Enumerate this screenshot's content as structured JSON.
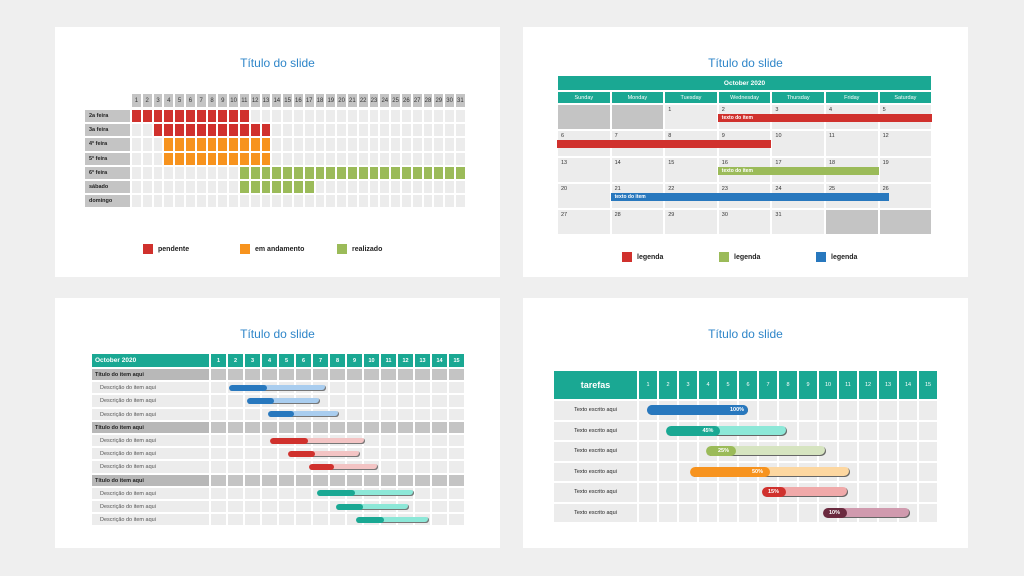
{
  "colors": {
    "teal": "#1aa893",
    "blue": "#2878be",
    "red": "#d0312d",
    "orange": "#f7931e",
    "green": "#9bbb59",
    "maroon": "#6b2a3f",
    "gray": "#c4c4c4"
  },
  "slide1": {
    "title": "Título do slide",
    "rows": [
      {
        "label": "2a feira",
        "start": 1,
        "end": 11,
        "status": "pendente"
      },
      {
        "label": "3a feira",
        "start": 3,
        "end": 13,
        "status": "pendente"
      },
      {
        "label": "4ª feira",
        "start": 4,
        "end": 13,
        "status": "em andamento"
      },
      {
        "label": "5ª feira",
        "start": 4,
        "end": 13,
        "status": "em andamento"
      },
      {
        "label": "6ª feira",
        "start": 11,
        "end": 31,
        "status": "realizado"
      },
      {
        "label": "sábado",
        "start": 11,
        "end": 17,
        "status": "realizado"
      },
      {
        "label": "domingo",
        "start": null,
        "end": null,
        "status": null
      }
    ],
    "legend": [
      {
        "label": "pendente",
        "color": "#d0312d"
      },
      {
        "label": "em andamento",
        "color": "#f7931e"
      },
      {
        "label": "realizado",
        "color": "#9bbb59"
      }
    ]
  },
  "slide2": {
    "title": "Título do slide",
    "month": "October 2020",
    "weekdays": [
      "Sunday",
      "Monday",
      "Tuesday",
      "Wednesday",
      "Thursday",
      "Friday",
      "Saturday"
    ],
    "weeks": [
      [
        "",
        "",
        "1",
        "2",
        "3",
        "4",
        "5"
      ],
      [
        "6",
        "7",
        "8",
        "9",
        "10",
        "11",
        "12"
      ],
      [
        "13",
        "14",
        "15",
        "16",
        "17",
        "18",
        "19"
      ],
      [
        "20",
        "21",
        "22",
        "23",
        "24",
        "25",
        "26"
      ],
      [
        "27",
        "28",
        "29",
        "30",
        "31",
        "",
        ""
      ]
    ],
    "events": [
      {
        "label": "texto do item",
        "week": 0,
        "startDay": 3,
        "endDay": 6,
        "color": "#d0312d"
      },
      {
        "label": "",
        "week": 1,
        "startDay": 0,
        "endDay": 3,
        "color": "#d0312d"
      },
      {
        "label": "texto do item",
        "week": 2,
        "startDay": 3,
        "endDay": 5,
        "color": "#9bbb59"
      },
      {
        "label": "texto do item",
        "week": 3,
        "startDay": 1,
        "endDay": 5.2,
        "color": "#2878be"
      }
    ],
    "legend": [
      {
        "label": "legenda",
        "color": "#d0312d"
      },
      {
        "label": "legenda",
        "color": "#9bbb59"
      },
      {
        "label": "legenda",
        "color": "#2878be"
      }
    ]
  },
  "slide3": {
    "title": "Título do slide",
    "header": "October 2020",
    "days": [
      "1",
      "2",
      "3",
      "4",
      "5",
      "6",
      "7",
      "8",
      "9",
      "10",
      "11",
      "12",
      "13",
      "14",
      "15"
    ],
    "groups": [
      {
        "title": "Título do item aqui",
        "color": "#2878be",
        "light": "#a9cdef",
        "items": [
          {
            "label": "Descrição do item aqui",
            "start": 2.1,
            "end": 7.8,
            "progress": 0.4
          },
          {
            "label": "Descrição do item aqui",
            "start": 3.2,
            "end": 7.5,
            "progress": 0.37
          },
          {
            "label": "Descrição do item aqui",
            "start": 4.4,
            "end": 8.6,
            "progress": 0.37
          }
        ]
      },
      {
        "title": "Título do item aqui",
        "color": "#d0312d",
        "light": "#f3c4c4",
        "items": [
          {
            "label": "Descrição do item aqui",
            "start": 4.5,
            "end": 10.1,
            "progress": 0.4
          },
          {
            "label": "Descrição do item aqui",
            "start": 5.6,
            "end": 9.8,
            "progress": 0.37
          },
          {
            "label": "Descrição do item aqui",
            "start": 6.8,
            "end": 10.9,
            "progress": 0.37
          }
        ]
      },
      {
        "title": "Título do item aqui",
        "color": "#1aa893",
        "light": "#8de8d8",
        "items": [
          {
            "label": "Descrição do item aqui",
            "start": 7.3,
            "end": 13.0,
            "progress": 0.39
          },
          {
            "label": "Descrição do item aqui",
            "start": 8.4,
            "end": 12.7,
            "progress": 0.37
          },
          {
            "label": "Descrição do item aqui",
            "start": 9.6,
            "end": 13.9,
            "progress": 0.38
          }
        ]
      }
    ]
  },
  "slide4": {
    "title": "Título do slide",
    "header": "tarefas",
    "days": [
      "1",
      "2",
      "3",
      "4",
      "5",
      "6",
      "7",
      "8",
      "9",
      "10",
      "11",
      "12",
      "13",
      "14",
      "15"
    ],
    "tasks": [
      {
        "label": "Texto escrito aqui",
        "start": 1.45,
        "end": 6.5,
        "percent": "100%",
        "value": 1.0,
        "color": "#2878be",
        "light": "#2878be"
      },
      {
        "label": "Texto escrito aqui",
        "start": 2.4,
        "end": 8.45,
        "percent": "45%",
        "value": 0.45,
        "color": "#1aa893",
        "light": "#8de8d8"
      },
      {
        "label": "Texto escrito aqui",
        "start": 4.4,
        "end": 10.4,
        "percent": "25%",
        "value": 0.25,
        "color": "#9bbb59",
        "light": "#d6e4c0"
      },
      {
        "label": "Texto escrito aqui",
        "start": 3.6,
        "end": 11.6,
        "percent": "50%",
        "value": 0.5,
        "color": "#f7931e",
        "light": "#fdd7a0"
      },
      {
        "label": "Texto escrito aqui",
        "start": 7.2,
        "end": 11.5,
        "percent": "15%",
        "value": 0.15,
        "color": "#d0312d",
        "light": "#f0a9a9"
      },
      {
        "label": "Texto escrito aqui",
        "start": 10.25,
        "end": 14.6,
        "percent": "10%",
        "value": 0.1,
        "color": "#6b2a3f",
        "light": "#d09aae"
      }
    ]
  }
}
